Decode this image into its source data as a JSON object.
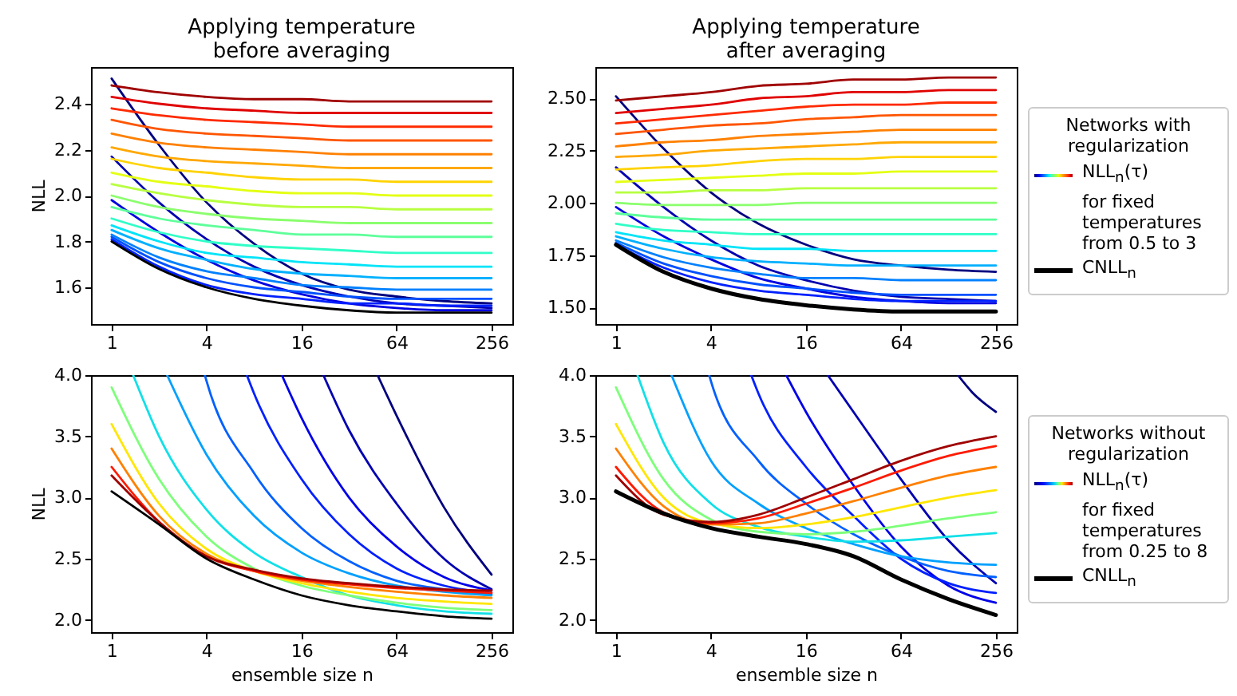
{
  "chart_data": [
    {
      "type": "line",
      "log": "x",
      "title": "Applying temperature before averaging",
      "ylabel": "NLL",
      "x": [
        1,
        2,
        4,
        8,
        16,
        32,
        64,
        128,
        256
      ],
      "xlim": [
        0.74,
        347
      ],
      "xticks": [
        1,
        4,
        16,
        64,
        256
      ],
      "ylim": [
        1.44,
        2.56
      ],
      "yticks": [
        1.6,
        1.8,
        {
          "value": 2,
          "label": "2.0"
        },
        2.2,
        2.4
      ],
      "series": [
        {
          "color": "#000080",
          "values": [
            2.51,
            2.22,
            1.97,
            1.79,
            1.66,
            1.59,
            1.56,
            1.54,
            1.53
          ]
        },
        {
          "color": "#0000b0",
          "values": [
            2.17,
            1.97,
            1.81,
            1.69,
            1.61,
            1.56,
            1.53,
            1.52,
            1.51
          ]
        },
        {
          "color": "#0000e0",
          "values": [
            1.98,
            1.84,
            1.72,
            1.63,
            1.57,
            1.53,
            1.51,
            1.5,
            1.5
          ]
        },
        {
          "color": "#0020ff",
          "values": [
            1.81,
            1.69,
            1.61,
            1.57,
            1.55,
            1.53,
            1.53,
            1.52,
            1.52
          ]
        },
        {
          "color": "#0050ff",
          "values": [
            1.82,
            1.71,
            1.64,
            1.6,
            1.58,
            1.56,
            1.55,
            1.55,
            1.55
          ]
        },
        {
          "color": "#0080ff",
          "values": [
            1.83,
            1.73,
            1.67,
            1.64,
            1.61,
            1.6,
            1.59,
            1.59,
            1.59
          ]
        },
        {
          "color": "#00b0ff",
          "values": [
            1.85,
            1.77,
            1.72,
            1.68,
            1.66,
            1.65,
            1.64,
            1.64,
            1.64
          ]
        },
        {
          "color": "#00e4f8",
          "values": [
            1.87,
            1.8,
            1.75,
            1.73,
            1.71,
            1.7,
            1.69,
            1.69,
            1.69
          ]
        },
        {
          "color": "#30ffc7",
          "values": [
            1.9,
            1.84,
            1.8,
            1.78,
            1.77,
            1.76,
            1.75,
            1.75,
            1.75
          ]
        },
        {
          "color": "#5dff9a",
          "values": [
            1.95,
            1.9,
            1.87,
            1.85,
            1.83,
            1.83,
            1.82,
            1.82,
            1.82
          ]
        },
        {
          "color": "#8aff6d",
          "values": [
            2.0,
            1.95,
            1.92,
            1.9,
            1.89,
            1.88,
            1.88,
            1.88,
            1.88
          ]
        },
        {
          "color": "#b7ff40",
          "values": [
            2.05,
            2.01,
            1.98,
            1.96,
            1.95,
            1.95,
            1.94,
            1.94,
            1.94
          ]
        },
        {
          "color": "#e4ff13",
          "values": [
            2.1,
            2.06,
            2.04,
            2.02,
            2.01,
            2.01,
            2.0,
            2.0,
            2.0
          ]
        },
        {
          "color": "#ffd300",
          "values": [
            2.16,
            2.12,
            2.1,
            2.08,
            2.07,
            2.07,
            2.06,
            2.06,
            2.06
          ]
        },
        {
          "color": "#ffa800",
          "values": [
            2.21,
            2.17,
            2.15,
            2.14,
            2.13,
            2.12,
            2.12,
            2.12,
            2.12
          ]
        },
        {
          "color": "#ff8000",
          "values": [
            2.27,
            2.23,
            2.21,
            2.2,
            2.19,
            2.18,
            2.18,
            2.18,
            2.18
          ]
        },
        {
          "color": "#ff5500",
          "values": [
            2.33,
            2.29,
            2.27,
            2.26,
            2.25,
            2.24,
            2.24,
            2.24,
            2.24
          ]
        },
        {
          "color": "#ff2a00",
          "values": [
            2.38,
            2.35,
            2.33,
            2.32,
            2.31,
            2.3,
            2.3,
            2.3,
            2.3
          ]
        },
        {
          "color": "#e00000",
          "values": [
            2.43,
            2.4,
            2.38,
            2.37,
            2.36,
            2.36,
            2.36,
            2.36,
            2.36
          ]
        },
        {
          "color": "#a00000",
          "values": [
            2.48,
            2.45,
            2.43,
            2.42,
            2.42,
            2.41,
            2.41,
            2.41,
            2.41
          ]
        },
        {
          "color": "#000000",
          "values": [
            1.8,
            1.68,
            1.6,
            1.55,
            1.52,
            1.5,
            1.49,
            1.49,
            1.49
          ]
        }
      ]
    },
    {
      "type": "line",
      "log": "x",
      "title": "Applying temperature after averaging",
      "x": [
        1,
        2,
        4,
        8,
        16,
        32,
        64,
        128,
        256
      ],
      "xlim": [
        0.74,
        347
      ],
      "xticks": [
        1,
        4,
        16,
        64,
        256
      ],
      "ylim": [
        1.42,
        2.65
      ],
      "yticks": [
        {
          "value": 1.5,
          "label": "1.50"
        },
        {
          "value": 1.75,
          "label": "1.75"
        },
        {
          "value": 2,
          "label": "2.00"
        },
        {
          "value": 2.25,
          "label": "2.25"
        },
        {
          "value": 2.5,
          "label": "2.50"
        }
      ],
      "legend": "right",
      "legend_title": "Networks with regularization",
      "annotations": [
        "NLL$_{n}$(τ)",
        "for fixed temperatures from 0.5 to 3"
      ],
      "series": [
        {
          "color": "#000080",
          "values": [
            2.51,
            2.26,
            2.05,
            1.9,
            1.8,
            1.73,
            1.7,
            1.68,
            1.67
          ]
        },
        {
          "color": "#0000b0",
          "values": [
            2.17,
            1.98,
            1.82,
            1.7,
            1.63,
            1.58,
            1.55,
            1.54,
            1.53
          ]
        },
        {
          "color": "#0000e0",
          "values": [
            1.98,
            1.84,
            1.73,
            1.64,
            1.59,
            1.55,
            1.53,
            1.52,
            1.52
          ]
        },
        {
          "color": "#0020ff",
          "values": [
            1.8,
            1.69,
            1.62,
            1.58,
            1.56,
            1.54,
            1.53,
            1.53,
            1.53
          ]
        },
        {
          "color": "#0050ff",
          "values": [
            1.81,
            1.71,
            1.65,
            1.61,
            1.59,
            1.57,
            1.56,
            1.56,
            1.56
          ]
        },
        {
          "color": "#0080ff",
          "values": [
            1.82,
            1.74,
            1.69,
            1.66,
            1.64,
            1.64,
            1.63,
            1.63,
            1.63
          ]
        },
        {
          "color": "#00b0ff",
          "values": [
            1.84,
            1.78,
            1.74,
            1.72,
            1.71,
            1.7,
            1.7,
            1.7,
            1.7
          ]
        },
        {
          "color": "#00e4f8",
          "values": [
            1.86,
            1.82,
            1.8,
            1.78,
            1.78,
            1.77,
            1.77,
            1.77,
            1.77
          ]
        },
        {
          "color": "#30ffc7",
          "values": [
            1.9,
            1.87,
            1.86,
            1.85,
            1.85,
            1.85,
            1.85,
            1.85,
            1.85
          ]
        },
        {
          "color": "#5dff9a",
          "values": [
            1.95,
            1.93,
            1.92,
            1.92,
            1.92,
            1.92,
            1.92,
            1.92,
            1.92
          ]
        },
        {
          "color": "#8aff6d",
          "values": [
            2.0,
            1.99,
            1.99,
            1.99,
            2.0,
            2.0,
            2.0,
            2.0,
            2.0
          ]
        },
        {
          "color": "#b7ff40",
          "values": [
            2.05,
            2.05,
            2.06,
            2.06,
            2.07,
            2.07,
            2.07,
            2.07,
            2.07
          ]
        },
        {
          "color": "#e4ff13",
          "values": [
            2.1,
            2.11,
            2.12,
            2.13,
            2.14,
            2.14,
            2.15,
            2.15,
            2.15
          ]
        },
        {
          "color": "#ffd300",
          "values": [
            2.16,
            2.17,
            2.18,
            2.2,
            2.21,
            2.21,
            2.22,
            2.22,
            2.22
          ]
        },
        {
          "color": "#ffa800",
          "values": [
            2.22,
            2.23,
            2.25,
            2.26,
            2.27,
            2.28,
            2.29,
            2.29,
            2.29
          ]
        },
        {
          "color": "#ff8000",
          "values": [
            2.27,
            2.29,
            2.3,
            2.32,
            2.33,
            2.34,
            2.35,
            2.35,
            2.35
          ]
        },
        {
          "color": "#ff5500",
          "values": [
            2.33,
            2.35,
            2.37,
            2.38,
            2.4,
            2.41,
            2.42,
            2.42,
            2.42
          ]
        },
        {
          "color": "#ff2a00",
          "values": [
            2.38,
            2.4,
            2.42,
            2.44,
            2.46,
            2.47,
            2.47,
            2.48,
            2.48
          ]
        },
        {
          "color": "#e00000",
          "values": [
            2.43,
            2.45,
            2.47,
            2.5,
            2.51,
            2.53,
            2.53,
            2.54,
            2.54
          ]
        },
        {
          "color": "#a00000",
          "values": [
            2.49,
            2.51,
            2.53,
            2.56,
            2.57,
            2.59,
            2.59,
            2.6,
            2.6
          ]
        },
        {
          "name": "CNLL$_{n}$",
          "color": "#000000",
          "values": [
            1.8,
            1.67,
            1.59,
            1.54,
            1.51,
            1.49,
            1.48,
            1.48,
            1.48
          ]
        }
      ]
    },
    {
      "type": "line",
      "log": "x",
      "xlabel": "ensemble size n",
      "ylabel": "NLL",
      "x": [
        1,
        2,
        4,
        8,
        16,
        32,
        64,
        128,
        256
      ],
      "xlim": [
        0.74,
        347
      ],
      "xticks": [
        1,
        4,
        16,
        64,
        256
      ],
      "ylim": [
        1.9,
        4.0
      ],
      "yticks": [
        {
          "value": 2,
          "label": "2.0"
        },
        2.5,
        {
          "value": 3,
          "label": "3.0"
        },
        3.5,
        {
          "value": 4,
          "label": "4.0"
        }
      ],
      "series": [
        {
          "color": "#000080",
          "x": [
            48.5,
            64,
            128,
            256
          ],
          "values": [
            4.0,
            3.67,
            2.92,
            2.37
          ]
        },
        {
          "color": "#0000b2",
          "x": [
            22,
            32,
            64,
            128,
            256
          ],
          "values": [
            4.0,
            3.55,
            2.95,
            2.5,
            2.25
          ]
        },
        {
          "color": "#0000e8",
          "x": [
            12,
            16,
            32,
            64,
            128,
            256
          ],
          "values": [
            4.0,
            3.65,
            3.0,
            2.6,
            2.35,
            2.24
          ]
        },
        {
          "color": "#0020ff",
          "x": [
            7.2,
            8,
            16,
            32,
            64,
            128,
            256
          ],
          "values": [
            4.0,
            3.85,
            3.15,
            2.7,
            2.42,
            2.28,
            2.22
          ]
        },
        {
          "color": "#0060ff",
          "x": [
            3.9,
            4,
            8,
            16,
            32,
            64,
            128,
            256
          ],
          "values": [
            4.0,
            3.95,
            3.2,
            2.75,
            2.48,
            2.32,
            2.25,
            2.21
          ]
        },
        {
          "color": "#00a0ff",
          "x": [
            2.25,
            4,
            8,
            16,
            32,
            64,
            128,
            256
          ],
          "values": [
            4.0,
            3.35,
            2.85,
            2.55,
            2.38,
            2.28,
            2.23,
            2.2
          ]
        },
        {
          "color": "#10e0e8",
          "x": [
            1.37,
            2,
            4,
            8,
            16,
            32,
            64,
            128,
            256
          ],
          "values": [
            4.0,
            3.5,
            2.9,
            2.55,
            2.35,
            2.2,
            2.12,
            2.07,
            2.05
          ]
        },
        {
          "color": "#7dff7a",
          "values": [
            3.9,
            3.15,
            2.68,
            2.42,
            2.28,
            2.2,
            2.14,
            2.1,
            2.08
          ]
        },
        {
          "color": "#ffe600",
          "values": [
            3.6,
            2.95,
            2.58,
            2.4,
            2.3,
            2.23,
            2.18,
            2.15,
            2.13
          ]
        },
        {
          "color": "#ff8000",
          "values": [
            3.4,
            2.85,
            2.54,
            2.4,
            2.32,
            2.27,
            2.23,
            2.2,
            2.18
          ]
        },
        {
          "color": "#ff1a00",
          "values": [
            3.25,
            2.8,
            2.52,
            2.4,
            2.33,
            2.29,
            2.26,
            2.24,
            2.22
          ]
        },
        {
          "color": "#a00000",
          "values": [
            3.18,
            2.8,
            2.52,
            2.41,
            2.34,
            2.3,
            2.27,
            2.25,
            2.24
          ]
        },
        {
          "color": "#000000",
          "values": [
            3.05,
            2.78,
            2.5,
            2.33,
            2.2,
            2.12,
            2.07,
            2.03,
            2.01
          ]
        }
      ]
    },
    {
      "type": "line",
      "log": "x",
      "xlabel": "ensemble size n",
      "x": [
        1,
        2,
        4,
        8,
        16,
        32,
        64,
        128,
        256
      ],
      "xlim": [
        0.74,
        347
      ],
      "xticks": [
        1,
        4,
        16,
        64,
        256
      ],
      "ylim": [
        1.9,
        4.0
      ],
      "yticks": [
        {
          "value": 2,
          "label": "2.0"
        },
        2.5,
        {
          "value": 3,
          "label": "3.0"
        },
        3.5,
        {
          "value": 4,
          "label": "4.0"
        }
      ],
      "legend": "right",
      "legend_title": "Networks without regularization",
      "annotations": [
        "NLL$_{n}$(τ)",
        "for fixed temperatures from 0.25 to 8"
      ],
      "series": [
        {
          "color": "#000080",
          "x": [
            147,
            181,
            256
          ],
          "values": [
            4.0,
            3.86,
            3.7
          ]
        },
        {
          "color": "#0000b2",
          "x": [
            22,
            32,
            64,
            128,
            256
          ],
          "values": [
            4.0,
            3.7,
            3.15,
            2.65,
            2.3
          ]
        },
        {
          "color": "#0000e8",
          "x": [
            12,
            16,
            32,
            64,
            128,
            256
          ],
          "values": [
            4.0,
            3.7,
            3.1,
            2.6,
            2.28,
            2.14
          ]
        },
        {
          "color": "#0020ff",
          "x": [
            7.2,
            8,
            16,
            32,
            64,
            128,
            256
          ],
          "values": [
            4.0,
            3.85,
            3.25,
            2.85,
            2.5,
            2.3,
            2.22
          ]
        },
        {
          "color": "#0060ff",
          "x": [
            3.9,
            4,
            8,
            16,
            32,
            64,
            128,
            256
          ],
          "values": [
            4.0,
            3.95,
            3.3,
            2.95,
            2.7,
            2.52,
            2.4,
            2.35
          ]
        },
        {
          "color": "#00a0ff",
          "x": [
            2.25,
            4,
            8,
            16,
            32,
            64,
            128,
            256
          ],
          "values": [
            4.0,
            3.3,
            2.95,
            2.75,
            2.62,
            2.52,
            2.47,
            2.45
          ]
        },
        {
          "color": "#10e0e8",
          "x": [
            1.37,
            2,
            4,
            8,
            16,
            32,
            64,
            128,
            256
          ],
          "values": [
            4.0,
            3.45,
            2.95,
            2.76,
            2.68,
            2.64,
            2.65,
            2.68,
            2.71
          ]
        },
        {
          "color": "#7dff7a",
          "values": [
            3.9,
            3.15,
            2.82,
            2.72,
            2.7,
            2.72,
            2.77,
            2.83,
            2.88
          ]
        },
        {
          "color": "#ffe600",
          "values": [
            3.6,
            3.0,
            2.79,
            2.75,
            2.78,
            2.84,
            2.92,
            3.0,
            3.06
          ]
        },
        {
          "color": "#ff8000",
          "values": [
            3.4,
            2.93,
            2.78,
            2.79,
            2.87,
            2.97,
            3.08,
            3.18,
            3.25
          ]
        },
        {
          "color": "#ff1a00",
          "values": [
            3.25,
            2.88,
            2.79,
            2.83,
            2.95,
            3.08,
            3.22,
            3.34,
            3.42
          ]
        },
        {
          "color": "#a00000",
          "values": [
            3.18,
            2.86,
            2.8,
            2.86,
            3.0,
            3.15,
            3.3,
            3.42,
            3.5
          ]
        },
        {
          "name": "CNLL$_{n}$",
          "color": "#000000",
          "values": [
            3.05,
            2.87,
            2.75,
            2.68,
            2.62,
            2.52,
            2.33,
            2.17,
            2.04
          ]
        }
      ]
    }
  ]
}
